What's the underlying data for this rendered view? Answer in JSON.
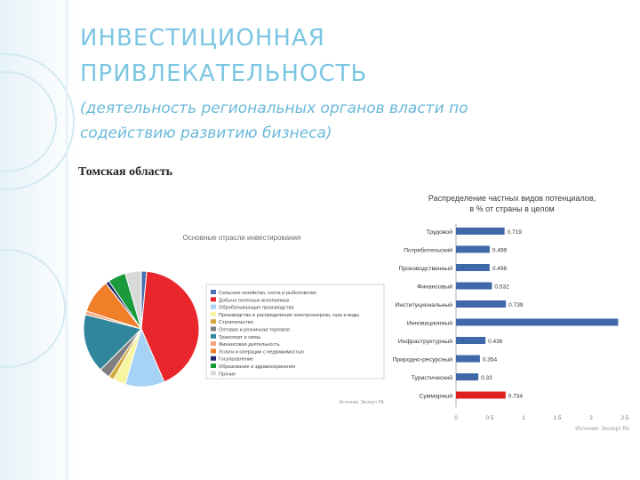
{
  "title": {
    "line1": "ИНВЕСТИЦИОННАЯ",
    "line2": "ПРИВЛЕКАТЕЛЬНОСТЬ",
    "subtitle_line1": "(деятельность региональных органов власти по",
    "subtitle_line2": "содействию развитию бизнеса)"
  },
  "region": "Томская область",
  "colors": {
    "title": "#7cc6e3",
    "bar_default": "#3f68a8",
    "bar_highlight": "#e02020"
  },
  "chart_data": [
    {
      "type": "pie",
      "title": "Основные отрасли инвестирования",
      "source": "Источник: Эксперт РА",
      "slices": [
        {
          "label": "Сельское хозяйство, охота и рыболовство",
          "value": 1.5,
          "color": "#4a6fb5"
        },
        {
          "label": "Добыча полезных ископаемых",
          "value": 42,
          "color": "#e8262b"
        },
        {
          "label": "Обрабатывающие производства",
          "value": 11,
          "color": "#a6d3f5"
        },
        {
          "label": "Производство и распределение электроэнергии, газа и воды",
          "value": 3.5,
          "color": "#f7f6a0"
        },
        {
          "label": "Строительство",
          "value": 1.5,
          "color": "#d4a93c"
        },
        {
          "label": "Оптовая и розничная торговля",
          "value": 3,
          "color": "#7f7f7f"
        },
        {
          "label": "Транспорт и связь",
          "value": 16.5,
          "color": "#31859c"
        },
        {
          "label": "Финансовая деятельность",
          "value": 1,
          "color": "#f3a57d"
        },
        {
          "label": "Услуги и операции с недвижимостью",
          "value": 9.5,
          "color": "#f07f2a"
        },
        {
          "label": "Госуправление",
          "value": 1,
          "color": "#1f2a6e"
        },
        {
          "label": "Образование и здравоохранение",
          "value": 5,
          "color": "#1a9a3a"
        },
        {
          "label": "Прочие",
          "value": 4.5,
          "color": "#d9d9d9"
        }
      ]
    },
    {
      "type": "bar",
      "orientation": "horizontal",
      "title": "Распределение частных видов потенциалов, в % от страны в целом",
      "source": "Источник: Эксперт РА",
      "categories": [
        "Трудовой",
        "Потребительский",
        "Производственный",
        "Финансовый",
        "Институциональный",
        "Инновационный",
        "Инфраструктурный",
        "Природно-ресурсный",
        "Туристический",
        "Суммарный"
      ],
      "values": [
        0.719,
        0.499,
        0.498,
        0.532,
        0.739,
        2.4,
        0.436,
        0.354,
        0.33,
        0.734
      ],
      "data_labels": [
        "0.719",
        "0.499",
        "0.498",
        "0.532",
        "0.739",
        "",
        "0.436",
        "0.354",
        "0.33",
        "0.734"
      ],
      "highlight_index": 9,
      "xlim": [
        0,
        2.5
      ],
      "xticks": [
        "0",
        "0.5",
        "1",
        "1.5",
        "2",
        "2.5"
      ]
    }
  ]
}
